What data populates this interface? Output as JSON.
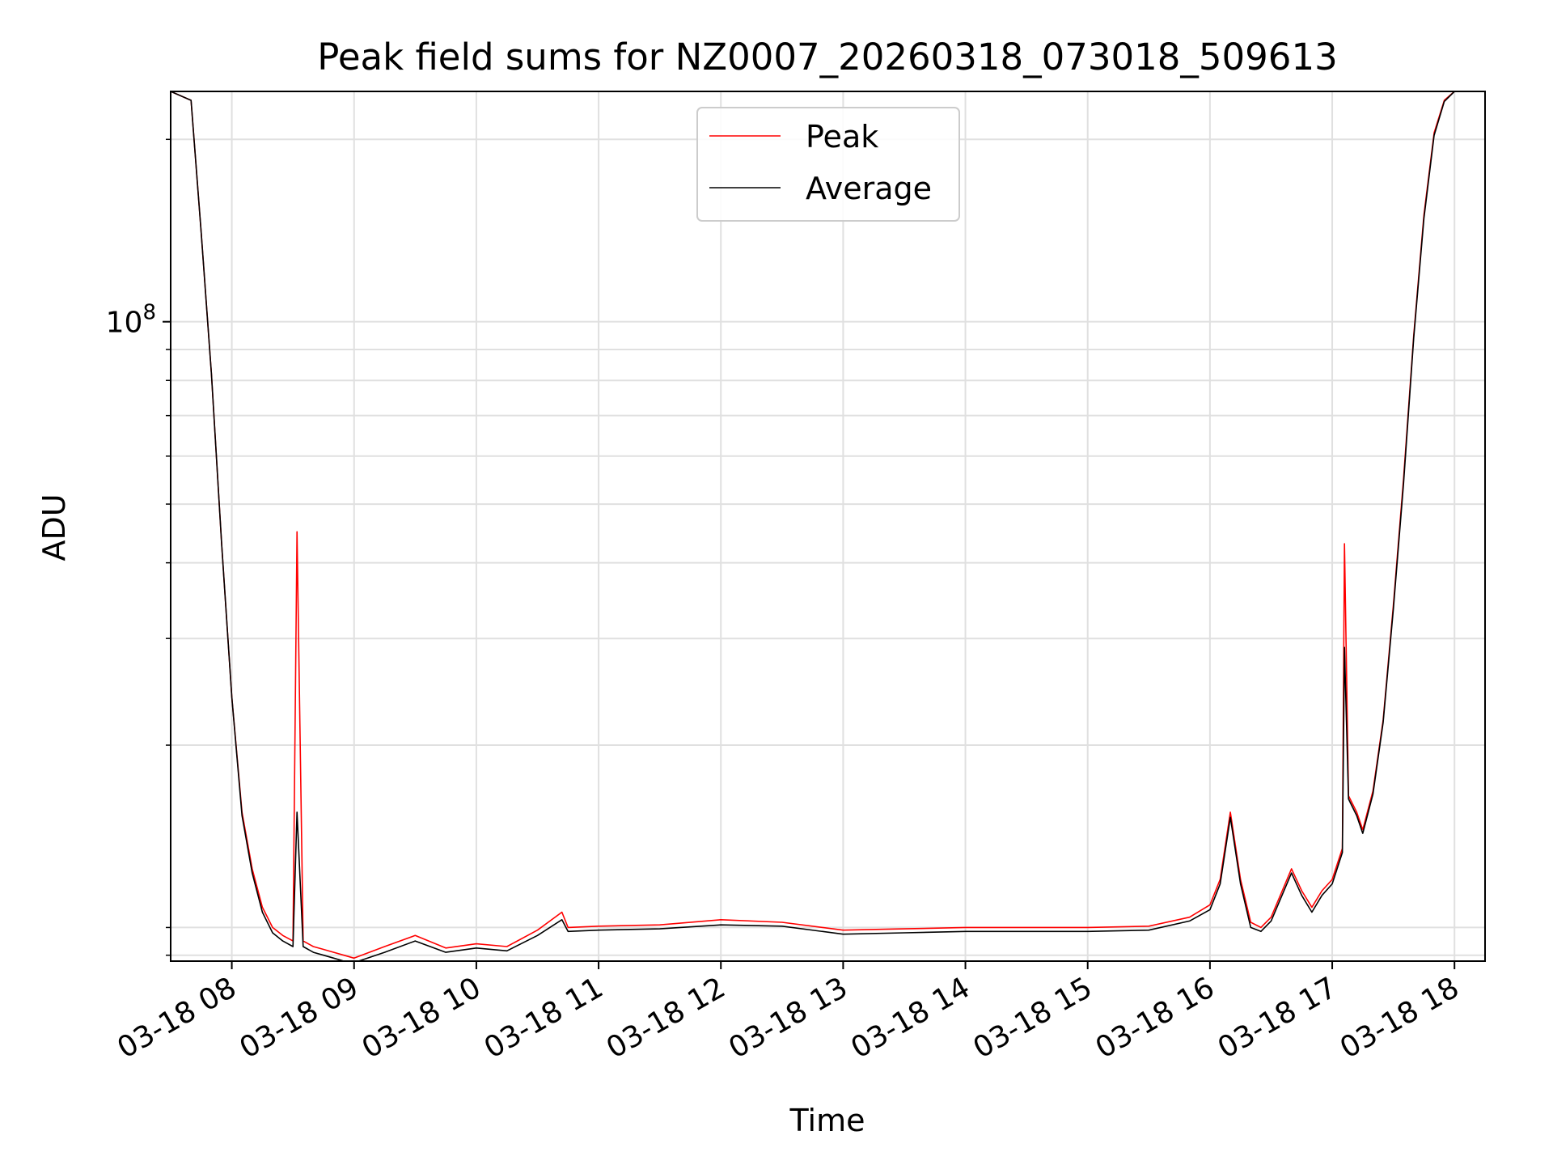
{
  "chart_data": {
    "type": "line",
    "title": "Peak field sums for NZ0007_20260318_073018_509613",
    "xlabel": "Time",
    "ylabel": "ADU",
    "y_scale": "log",
    "ylim": [
      8800000,
      240000000
    ],
    "xlim": [
      "2026-03-18 07:30",
      "2026-03-18 18:15"
    ],
    "x_tick_labels": [
      "03-18 08",
      "03-18 09",
      "03-18 10",
      "03-18 11",
      "03-18 12",
      "03-18 13",
      "03-18 14",
      "03-18 15",
      "03-18 16",
      "03-18 17",
      "03-18 18"
    ],
    "x_ticks": [
      "2026-03-18 08:00",
      "2026-03-18 09:00",
      "2026-03-18 10:00",
      "2026-03-18 11:00",
      "2026-03-18 12:00",
      "2026-03-18 13:00",
      "2026-03-18 14:00",
      "2026-03-18 15:00",
      "2026-03-18 16:00",
      "2026-03-18 17:00",
      "2026-03-18 18:00"
    ],
    "y_tick_labels": [
      {
        "base": "10",
        "exp": "8",
        "value": 100000000
      }
    ],
    "y_minor_ticks": [
      9000000,
      10000000,
      20000000,
      30000000,
      40000000,
      50000000,
      60000000,
      70000000,
      80000000,
      90000000,
      200000000
    ],
    "grid": true,
    "legend_position": "top-center",
    "series": [
      {
        "name": "Peak",
        "color": "#ff0000",
        "x": [
          "07:30",
          "07:40",
          "07:45",
          "07:50",
          "07:55",
          "08:00",
          "08:05",
          "08:10",
          "08:15",
          "08:20",
          "08:25",
          "08:30",
          "08:32",
          "08:35",
          "08:40",
          "08:45",
          "08:50",
          "08:55",
          "09:00",
          "09:15",
          "09:30",
          "09:45",
          "10:00",
          "10:15",
          "10:30",
          "10:42",
          "10:45",
          "11:00",
          "11:30",
          "12:00",
          "12:30",
          "13:00",
          "13:30",
          "14:00",
          "14:30",
          "15:00",
          "15:30",
          "15:50",
          "16:00",
          "16:05",
          "16:10",
          "16:15",
          "16:20",
          "16:25",
          "16:30",
          "16:40",
          "16:45",
          "16:50",
          "16:55",
          "17:00",
          "17:05",
          "17:06",
          "17:08",
          "17:12",
          "17:15",
          "17:20",
          "17:25",
          "17:30",
          "17:35",
          "17:40",
          "17:45",
          "17:50",
          "17:55",
          "18:00",
          "18:15"
        ],
        "y": [
          240000000,
          232000000,
          140000000,
          82000000,
          43000000,
          24000000,
          15500000,
          12500000,
          10800000,
          10000000,
          9700000,
          9500000,
          45000000,
          9500000,
          9300000,
          9200000,
          9100000,
          9000000,
          8900000,
          9300000,
          9700000,
          9250000,
          9400000,
          9300000,
          9900000,
          10600000,
          10000000,
          10050000,
          10100000,
          10300000,
          10200000,
          9900000,
          9950000,
          10000000,
          10000000,
          10000000,
          10050000,
          10400000,
          10900000,
          12000000,
          15500000,
          12000000,
          10200000,
          10000000,
          10400000,
          12500000,
          11500000,
          10800000,
          11500000,
          12000000,
          13500000,
          43000000,
          16500000,
          15500000,
          14500000,
          16800000,
          22000000,
          34000000,
          55000000,
          95000000,
          150000000,
          205000000,
          232000000,
          240000000,
          240000000
        ]
      },
      {
        "name": "Average",
        "color": "#000000",
        "x": [
          "07:30",
          "07:40",
          "07:45",
          "07:50",
          "07:55",
          "08:00",
          "08:05",
          "08:10",
          "08:15",
          "08:20",
          "08:25",
          "08:30",
          "08:32",
          "08:35",
          "08:40",
          "08:45",
          "08:50",
          "08:55",
          "09:00",
          "09:15",
          "09:30",
          "09:45",
          "10:00",
          "10:15",
          "10:30",
          "10:42",
          "10:45",
          "11:00",
          "11:30",
          "12:00",
          "12:30",
          "13:00",
          "13:30",
          "14:00",
          "14:30",
          "15:00",
          "15:30",
          "15:50",
          "16:00",
          "16:05",
          "16:10",
          "16:15",
          "16:20",
          "16:25",
          "16:30",
          "16:40",
          "16:45",
          "16:50",
          "16:55",
          "17:00",
          "17:05",
          "17:06",
          "17:08",
          "17:12",
          "17:15",
          "17:20",
          "17:25",
          "17:30",
          "17:35",
          "17:40",
          "17:45",
          "17:50",
          "17:55",
          "18:00",
          "18:15"
        ],
        "y": [
          240000000,
          232000000,
          140000000,
          82000000,
          43000000,
          24000000,
          15300000,
          12300000,
          10600000,
          9800000,
          9500000,
          9300000,
          15500000,
          9300000,
          9100000,
          9000000,
          8900000,
          8800000,
          8750000,
          9100000,
          9500000,
          9100000,
          9250000,
          9150000,
          9700000,
          10300000,
          9850000,
          9900000,
          9950000,
          10100000,
          10050000,
          9750000,
          9800000,
          9850000,
          9850000,
          9850000,
          9900000,
          10250000,
          10700000,
          11800000,
          15200000,
          11800000,
          10000000,
          9850000,
          10250000,
          12300000,
          11300000,
          10600000,
          11300000,
          11800000,
          13300000,
          29000000,
          16300000,
          15300000,
          14300000,
          16600000,
          21800000,
          33500000,
          54000000,
          94000000,
          148000000,
          203000000,
          231000000,
          240000000,
          240000000
        ]
      }
    ]
  }
}
